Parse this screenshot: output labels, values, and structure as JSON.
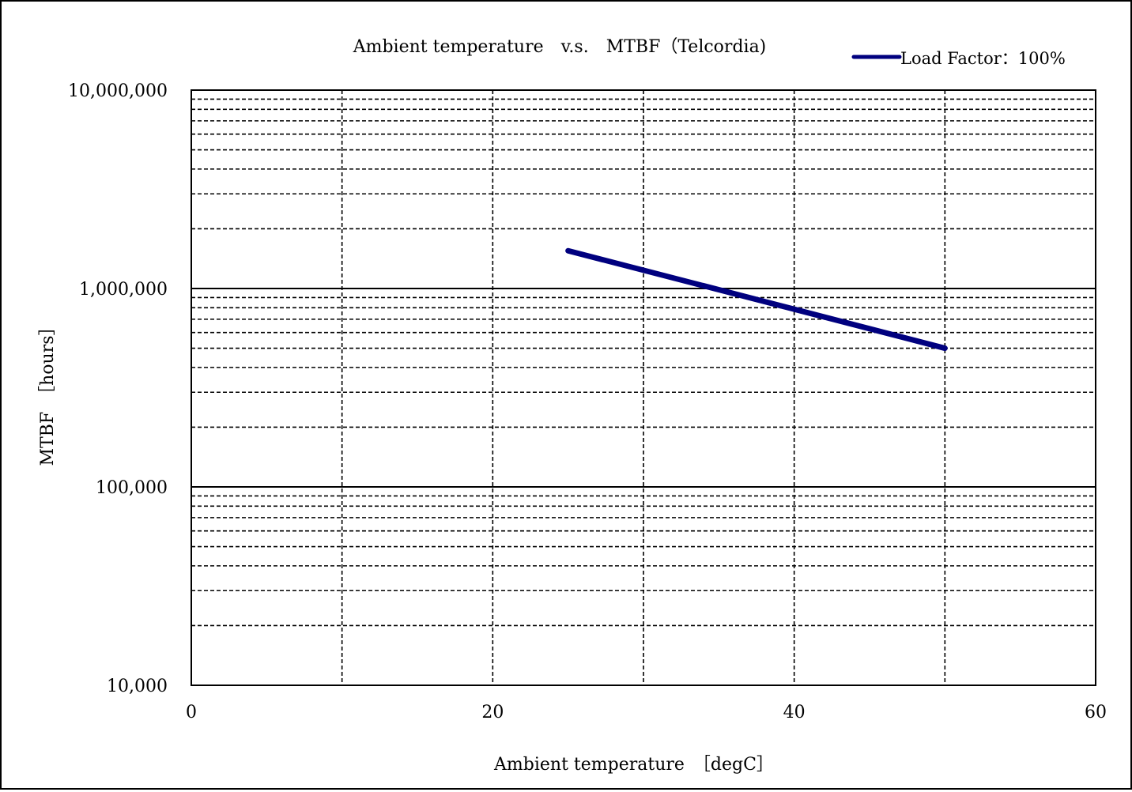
{
  "chart_data": {
    "type": "line",
    "title": "Ambient temperature　v.s.　MTBF（Telcordia)",
    "xlabel": "Ambient temperature　［degC］",
    "ylabel": "MTBF　［hours］",
    "xlim": [
      0,
      60
    ],
    "ylim": [
      10000,
      10000000
    ],
    "yscale": "log",
    "grid": true,
    "legend_position": "top-right",
    "x_ticks": [
      0,
      20,
      40,
      60
    ],
    "x_tick_labels": [
      "0",
      "20",
      "40",
      "60"
    ],
    "y_ticks": [
      10000,
      100000,
      1000000,
      10000000
    ],
    "y_tick_labels": [
      "10,000",
      "100,000",
      "1,000,000",
      "10,000,000"
    ],
    "x_minor_grid": [
      10,
      30,
      50
    ],
    "series": [
      {
        "name": "Load Factor：100%",
        "color": "#00007f",
        "x": [
          25,
          50
        ],
        "y": [
          1550000,
          500000
        ]
      }
    ]
  }
}
